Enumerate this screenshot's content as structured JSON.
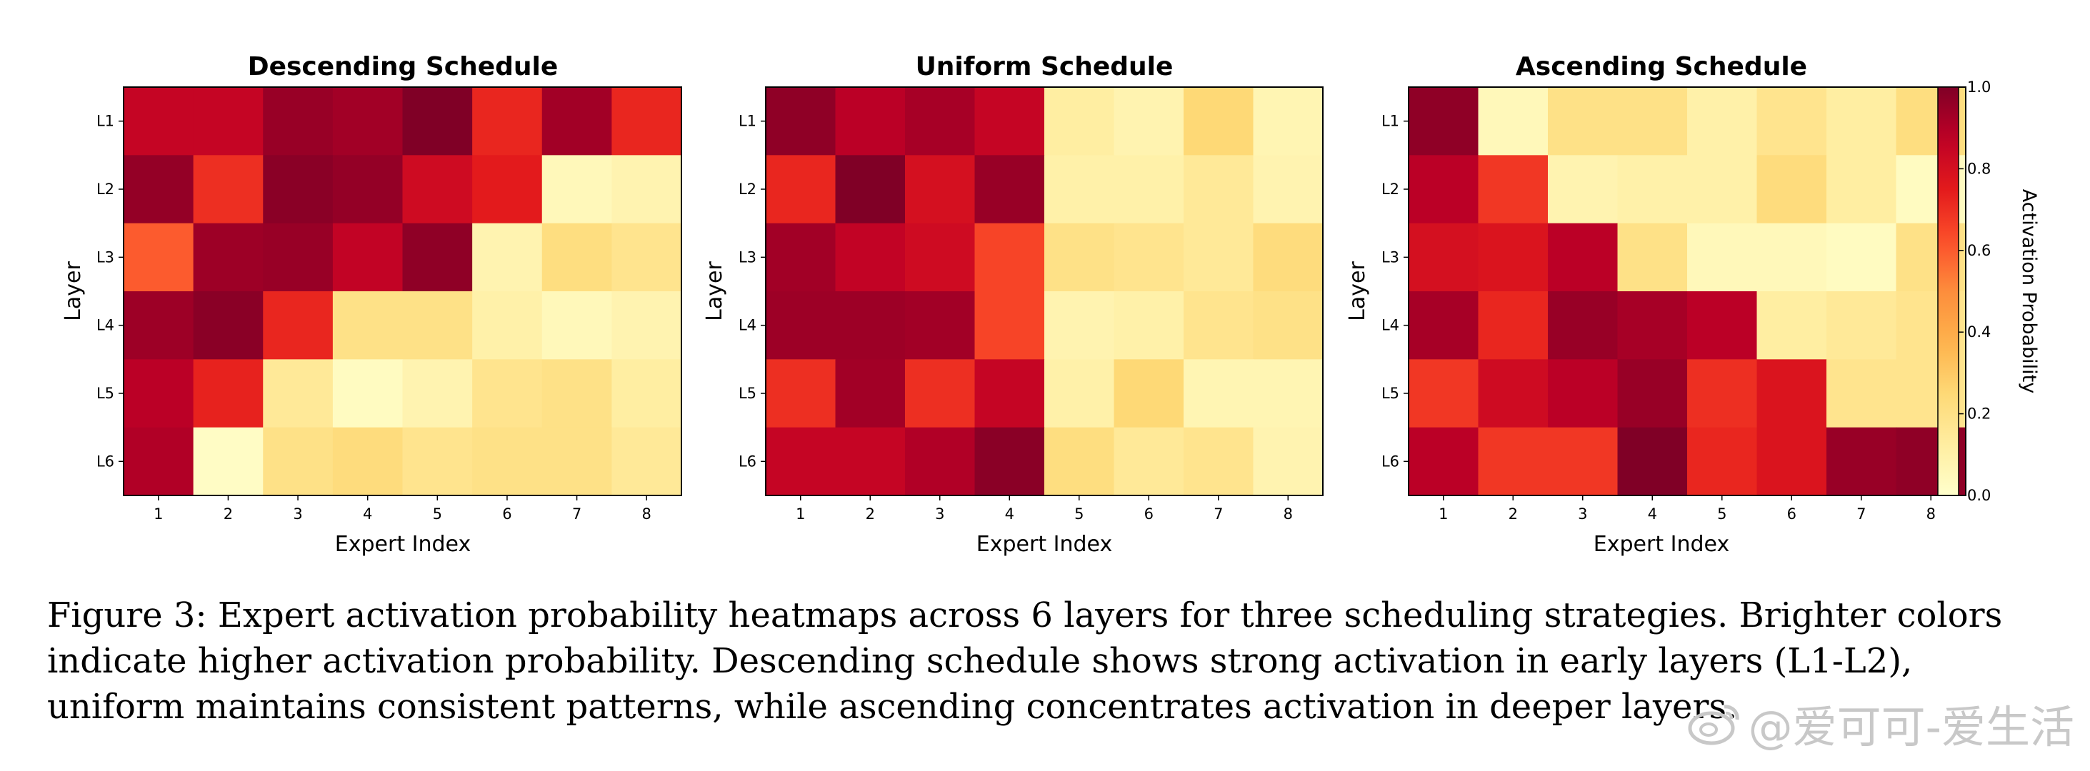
{
  "figure_caption": "Figure 3: Expert activation probability heatmaps across 6 layers for three scheduling strategies. Brighter colors indicate higher activation probability. Descending schedule shows strong activation in early layers (L1-L2), uniform maintains consistent patterns, while ascending concentrates activation in deeper layers.",
  "watermark": "@爱可可-爱生活",
  "colors": {
    "low": "#ffffcc",
    "high": "#800026",
    "colormap": "YlOrRd"
  },
  "chart_data": [
    {
      "type": "heatmap",
      "title": "Descending Schedule",
      "xlabel": "Expert Index",
      "ylabel": "Layer",
      "x": [
        "1",
        "2",
        "3",
        "4",
        "5",
        "6",
        "7",
        "8"
      ],
      "y": [
        "L1",
        "L2",
        "L3",
        "L4",
        "L5",
        "L6"
      ],
      "values": [
        [
          0.85,
          0.85,
          0.95,
          0.93,
          1.0,
          0.72,
          0.93,
          0.72
        ],
        [
          0.96,
          0.7,
          0.98,
          0.96,
          0.82,
          0.75,
          0.05,
          0.08
        ],
        [
          0.6,
          0.94,
          0.95,
          0.86,
          0.97,
          0.08,
          0.22,
          0.18
        ],
        [
          0.94,
          0.98,
          0.72,
          0.2,
          0.2,
          0.1,
          0.05,
          0.08
        ],
        [
          0.88,
          0.73,
          0.15,
          0.03,
          0.08,
          0.18,
          0.2,
          0.12
        ],
        [
          0.9,
          0.02,
          0.2,
          0.23,
          0.18,
          0.2,
          0.2,
          0.15
        ]
      ]
    },
    {
      "type": "heatmap",
      "title": "Uniform Schedule",
      "xlabel": "Expert Index",
      "ylabel": "Layer",
      "x": [
        "1",
        "2",
        "3",
        "4",
        "5",
        "6",
        "7",
        "8"
      ],
      "y": [
        "L1",
        "L2",
        "L3",
        "L4",
        "L5",
        "L6"
      ],
      "values": [
        [
          0.97,
          0.88,
          0.92,
          0.85,
          0.12,
          0.08,
          0.25,
          0.07
        ],
        [
          0.72,
          1.0,
          0.8,
          0.95,
          0.1,
          0.1,
          0.15,
          0.08
        ],
        [
          0.93,
          0.86,
          0.82,
          0.65,
          0.2,
          0.18,
          0.15,
          0.23
        ],
        [
          0.94,
          0.94,
          0.93,
          0.65,
          0.08,
          0.1,
          0.18,
          0.2
        ],
        [
          0.7,
          0.93,
          0.7,
          0.85,
          0.1,
          0.25,
          0.07,
          0.07
        ],
        [
          0.85,
          0.85,
          0.9,
          0.98,
          0.22,
          0.15,
          0.18,
          0.08
        ]
      ]
    },
    {
      "type": "heatmap",
      "title": "Ascending Schedule",
      "xlabel": "Expert Index",
      "ylabel": "Layer",
      "x": [
        "1",
        "2",
        "3",
        "4",
        "5",
        "6",
        "7",
        "8"
      ],
      "y": [
        "L1",
        "L2",
        "L3",
        "L4",
        "L5",
        "L6"
      ],
      "values": [
        [
          0.97,
          0.05,
          0.2,
          0.2,
          0.1,
          0.18,
          0.12,
          0.22
        ],
        [
          0.88,
          0.68,
          0.08,
          0.1,
          0.1,
          0.23,
          0.12,
          0.03
        ],
        [
          0.8,
          0.78,
          0.88,
          0.2,
          0.05,
          0.05,
          0.03,
          0.2
        ],
        [
          0.92,
          0.72,
          0.95,
          0.92,
          0.88,
          0.12,
          0.15,
          0.18
        ],
        [
          0.68,
          0.82,
          0.88,
          0.95,
          0.7,
          0.78,
          0.18,
          0.18
        ],
        [
          0.88,
          0.68,
          0.68,
          1.0,
          0.72,
          0.78,
          0.95,
          0.97
        ]
      ]
    }
  ],
  "colorbar": {
    "label": "Activation Probability",
    "ticks": [
      "0.0",
      "0.2",
      "0.4",
      "0.6",
      "0.8",
      "1.0"
    ],
    "tick_values": [
      0.0,
      0.2,
      0.4,
      0.6,
      0.8,
      1.0
    ],
    "range": [
      0.0,
      1.0
    ]
  }
}
